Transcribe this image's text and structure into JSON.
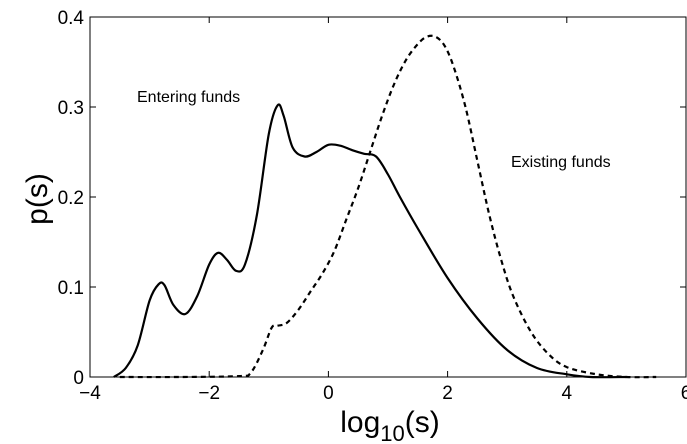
{
  "chart_data": {
    "type": "line",
    "title": "",
    "xlabel": {
      "base": "log",
      "sub": "10",
      "rest": "(s)"
    },
    "ylabel": "p(s)",
    "xlim": [
      -4,
      6
    ],
    "ylim": [
      0,
      0.4
    ],
    "xticks": [
      -4,
      -2,
      0,
      2,
      4,
      6
    ],
    "xtick_labels": [
      "−4",
      "−2",
      "0",
      "2",
      "4",
      "6"
    ],
    "yticks": [
      0,
      0.1,
      0.2,
      0.3,
      0.4
    ],
    "ytick_labels": [
      "0",
      "0.1",
      "0.2",
      "0.3",
      "0.4"
    ],
    "grid": false,
    "series": [
      {
        "name": "Entering funds",
        "style": "solid",
        "color": "#000000",
        "x": [
          -3.6,
          -3.4,
          -3.2,
          -3.0,
          -2.85,
          -2.75,
          -2.6,
          -2.4,
          -2.2,
          -2.0,
          -1.85,
          -1.7,
          -1.55,
          -1.4,
          -1.2,
          -1.0,
          -0.85,
          -0.75,
          -0.6,
          -0.4,
          -0.2,
          0.0,
          0.2,
          0.4,
          0.6,
          0.8,
          1.0,
          1.2,
          1.5,
          2.0,
          2.5,
          3.0,
          3.5,
          4.0,
          4.4,
          5.0
        ],
        "y": [
          0.0,
          0.01,
          0.035,
          0.085,
          0.103,
          0.102,
          0.08,
          0.07,
          0.09,
          0.125,
          0.138,
          0.13,
          0.118,
          0.125,
          0.18,
          0.27,
          0.302,
          0.29,
          0.255,
          0.245,
          0.25,
          0.258,
          0.257,
          0.252,
          0.248,
          0.245,
          0.225,
          0.2,
          0.165,
          0.11,
          0.065,
          0.03,
          0.01,
          0.003,
          0.0,
          0.0
        ]
      },
      {
        "name": "Existing funds",
        "style": "dashed",
        "color": "#000000",
        "x": [
          -3.5,
          -2.5,
          -1.5,
          -1.3,
          -1.1,
          -0.95,
          -0.85,
          -0.7,
          -0.5,
          -0.3,
          -0.1,
          0.1,
          0.3,
          0.5,
          0.7,
          0.9,
          1.1,
          1.3,
          1.5,
          1.65,
          1.8,
          1.95,
          2.1,
          2.3,
          2.5,
          2.7,
          2.9,
          3.1,
          3.4,
          3.7,
          4.0,
          4.5,
          5.0,
          5.5
        ],
        "y": [
          0.0,
          0.0,
          0.001,
          0.005,
          0.03,
          0.055,
          0.057,
          0.06,
          0.075,
          0.095,
          0.115,
          0.14,
          0.175,
          0.21,
          0.25,
          0.29,
          0.325,
          0.352,
          0.37,
          0.378,
          0.378,
          0.368,
          0.345,
          0.3,
          0.24,
          0.18,
          0.13,
          0.09,
          0.05,
          0.025,
          0.011,
          0.003,
          0.0,
          0.0
        ]
      }
    ],
    "annotations": [
      {
        "text": "Entering funds",
        "series": "Entering funds"
      },
      {
        "text": "Existing funds",
        "series": "Existing funds"
      }
    ]
  }
}
